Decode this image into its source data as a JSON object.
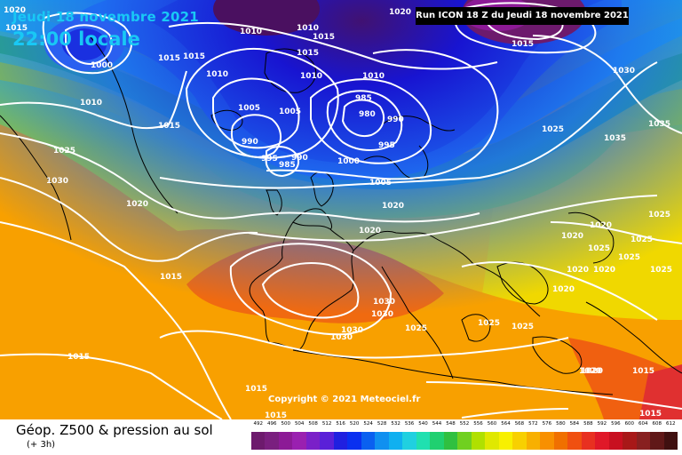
{
  "header": {
    "date_label": "Jeudi 18 novembre 2021",
    "time_label": "22:00 locale",
    "run_label": "Run ICON 18 Z du Jeudi 18 novembre 2021"
  },
  "copyright": "Copyright © 2021 Meteociel.fr",
  "footer": {
    "title": "Géop. Z500 & pression au sol",
    "subtitle": "(+ 3h)"
  },
  "colors": {
    "low_core": "#4a1060",
    "deep_blue": "#0a18d8",
    "blue": "#1e6cf0",
    "cyan": "#2ac8e0",
    "green": "#30c050",
    "yellow_green": "#b8e000",
    "yellow": "#f8e000",
    "orange": "#f8a000",
    "dark_orange": "#f06010",
    "red": "#e03030",
    "isobar": "#ffffff",
    "coast": "#000000"
  },
  "isobars": [
    {
      "value": "1020",
      "where": "top-left corner"
    },
    {
      "value": "1015",
      "where": "far north-west"
    },
    {
      "value": "1000",
      "where": "Canadian low"
    },
    {
      "value": "1010",
      "where": "Greenland"
    },
    {
      "value": "1015",
      "where": "Greenland south"
    },
    {
      "value": "1015",
      "where": "Greenland south 2"
    },
    {
      "value": "1010",
      "where": "Iceland north"
    },
    {
      "value": "1010",
      "where": "Iceland west"
    },
    {
      "value": "1005",
      "where": "Iceland"
    },
    {
      "value": "1005",
      "where": "Iceland east"
    },
    {
      "value": "1015",
      "where": "north Atlantic"
    },
    {
      "value": "1015",
      "where": "Arctic"
    },
    {
      "value": "1010",
      "where": "Norwegian Sea"
    },
    {
      "value": "1020",
      "where": "Arctic north"
    },
    {
      "value": "1010",
      "where": "Labrador"
    },
    {
      "value": "1015",
      "where": "mid Atlantic"
    },
    {
      "value": "1025",
      "where": "Newfoundland"
    },
    {
      "value": "1030",
      "where": "western Atlantic"
    },
    {
      "value": "1020",
      "where": "central Atlantic"
    },
    {
      "value": "985",
      "where": "Norway low"
    },
    {
      "value": "980",
      "where": "Norway low centre"
    },
    {
      "value": "990",
      "where": "Norway low east"
    },
    {
      "value": "995",
      "where": "Norway low south"
    },
    {
      "value": "990",
      "where": "Ireland low"
    },
    {
      "value": "995",
      "where": "Irish Sea"
    },
    {
      "value": "985",
      "where": "North Sea low"
    },
    {
      "value": "990",
      "where": "North Sea low east"
    },
    {
      "value": "1000",
      "where": "North Sea"
    },
    {
      "value": "1005",
      "where": "Denmark"
    },
    {
      "value": "1010",
      "where": "Germany north"
    },
    {
      "value": "1015",
      "where": "Siberia"
    },
    {
      "value": "1030",
      "where": "Russia"
    },
    {
      "value": "1025",
      "where": "Russia west"
    },
    {
      "value": "1035",
      "where": "Urals"
    },
    {
      "value": "1035",
      "where": "Urals north"
    },
    {
      "value": "1020",
      "where": "central Europe"
    },
    {
      "value": "1020",
      "where": "Poland"
    },
    {
      "value": "1020",
      "where": "Ukraine"
    },
    {
      "value": "1020",
      "where": "Black Sea north"
    },
    {
      "value": "1020",
      "where": "Black Sea"
    },
    {
      "value": "1020",
      "where": "Black Sea east"
    },
    {
      "value": "1025",
      "where": "Caspian"
    },
    {
      "value": "1025",
      "where": "Caspian east"
    },
    {
      "value": "1025",
      "where": "Caspian 2"
    },
    {
      "value": "1025",
      "where": "Caspian 3"
    },
    {
      "value": "1025",
      "where": "Caspian 4"
    },
    {
      "value": "1020",
      "where": "Caucasus"
    },
    {
      "value": "1020",
      "where": "Anatolia"
    },
    {
      "value": "1030",
      "where": "Alps"
    },
    {
      "value": "1030",
      "where": "Alps south"
    },
    {
      "value": "1030",
      "where": "Iberia"
    },
    {
      "value": "1030",
      "where": "Iberia south"
    },
    {
      "value": "1025",
      "where": "Italy"
    },
    {
      "value": "1025",
      "where": "Balkans"
    },
    {
      "value": "1025",
      "where": "Balkans east"
    },
    {
      "value": "1015",
      "where": "Atlantic south"
    },
    {
      "value": "1015",
      "where": "Azores"
    },
    {
      "value": "1015",
      "where": "North Africa"
    },
    {
      "value": "1015",
      "where": "Sahara"
    },
    {
      "value": "1020",
      "where": "Libya"
    },
    {
      "value": "1015",
      "where": "Middle East"
    },
    {
      "value": "1015",
      "where": "Arabia"
    }
  ],
  "scale": {
    "labels": [
      "492",
      "496",
      "500",
      "504",
      "508",
      "512",
      "516",
      "520",
      "524",
      "528",
      "532",
      "536",
      "540",
      "544",
      "548",
      "552",
      "556",
      "560",
      "564",
      "568",
      "572",
      "576",
      "580",
      "584",
      "588",
      "592",
      "596",
      "600",
      "604",
      "608",
      "612"
    ],
    "colors": [
      "#6d1a6d",
      "#7a1f7f",
      "#8c1a96",
      "#9a20b0",
      "#7a20c8",
      "#5a20d8",
      "#2020e0",
      "#0a30f0",
      "#0a60f0",
      "#1090f0",
      "#10b0f0",
      "#20d0e0",
      "#20e0b0",
      "#20d070",
      "#30c040",
      "#70d020",
      "#b0e000",
      "#e0e800",
      "#f8f000",
      "#f8d000",
      "#f8b000",
      "#f89000",
      "#f07000",
      "#f05010",
      "#e83020",
      "#e01828",
      "#c81020",
      "#a81818",
      "#882020",
      "#601818",
      "#401010"
    ]
  }
}
